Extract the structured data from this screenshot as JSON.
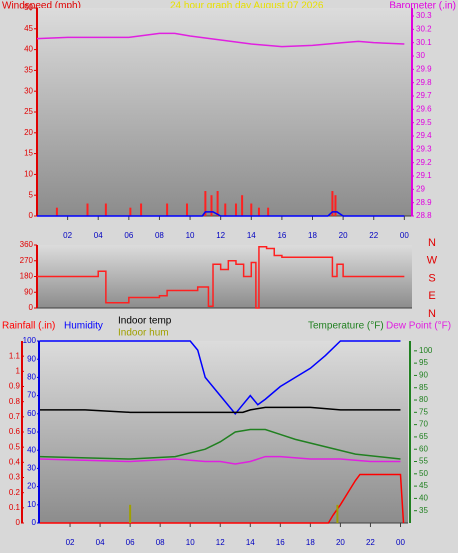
{
  "chart_data": [
    {
      "type": "line",
      "title": "24 hour graph day   August 07 2026",
      "ylabel": "Windspeed (mph)",
      "y2label": "Barometer (.in)",
      "xlim": [
        0,
        24.5
      ],
      "xticks": [
        {
          "value": 2,
          "label": "02"
        },
        {
          "value": 4,
          "label": "04"
        },
        {
          "value": 6,
          "label": "06"
        },
        {
          "value": 8,
          "label": "08"
        },
        10,
        12,
        14,
        16,
        18,
        20,
        22,
        {
          "value": 24,
          "label": "00"
        }
      ],
      "ylim": [
        0,
        50
      ],
      "yticks": [
        0,
        5,
        10,
        15,
        20,
        25,
        30,
        35,
        40,
        45,
        50
      ],
      "y2lim": [
        28.8,
        30.36
      ],
      "y2ticks": [
        28.8,
        28.9,
        29,
        29.1,
        29.2,
        29.3,
        29.4,
        29.5,
        29.6,
        29.7,
        29.8,
        29.9,
        30,
        30.1,
        30.2,
        30.3
      ],
      "series": [
        {
          "color": "#ff2020",
          "style": "spikes",
          "x": [
            1.3,
            3.3,
            4.5,
            6.1,
            6.8,
            8.5,
            9.8,
            11.0,
            11.4,
            11.8,
            12.3,
            13.0,
            13.4,
            14.0,
            14.5,
            15.1,
            19.3,
            19.5
          ],
          "values": [
            2,
            3,
            3,
            2,
            3,
            3,
            3,
            6,
            5,
            6,
            3,
            3,
            5,
            3,
            2,
            2,
            6,
            5
          ]
        },
        {
          "color": "#0000ff",
          "x": [
            0,
            10.8,
            11,
            11.5,
            12,
            19,
            19.3,
            19.6,
            20,
            24
          ],
          "values": [
            0,
            0,
            1,
            1,
            0,
            0,
            1,
            1,
            0,
            0
          ]
        },
        {
          "color": "#e020e0",
          "axis": "y2",
          "x": [
            0,
            2,
            4,
            6,
            8,
            9,
            10,
            12,
            14,
            16,
            18,
            20,
            21,
            22,
            24
          ],
          "values": [
            30.13,
            30.14,
            30.14,
            30.14,
            30.17,
            30.17,
            30.15,
            30.12,
            30.09,
            30.07,
            30.08,
            30.1,
            30.11,
            30.1,
            30.09
          ]
        }
      ]
    },
    {
      "type": "line",
      "xlim": [
        0,
        24.5
      ],
      "ylim": [
        0,
        360
      ],
      "yticks": [
        0,
        90,
        180,
        270,
        360
      ],
      "compass": [
        "N",
        "W",
        "S",
        "E",
        "N"
      ],
      "series": [
        {
          "color": "#ff2020",
          "style": "step",
          "x": [
            0,
            4,
            4.5,
            6,
            8,
            8.5,
            10.5,
            11.2,
            11.5,
            12,
            12.5,
            13,
            13.5,
            14,
            14.3,
            14.5,
            15,
            15.5,
            16,
            19,
            19.3,
            19.6,
            20,
            24
          ],
          "values": [
            180,
            210,
            30,
            60,
            70,
            100,
            120,
            10,
            250,
            220,
            270,
            250,
            180,
            260,
            0,
            350,
            340,
            300,
            290,
            290,
            180,
            250,
            180,
            180
          ]
        }
      ]
    },
    {
      "type": "line",
      "xlim": [
        0,
        24.5
      ],
      "xticks": [
        {
          "value": 2,
          "label": "02"
        },
        {
          "value": 4,
          "label": "04"
        },
        {
          "value": 6,
          "label": "06"
        },
        {
          "value": 8,
          "label": "08"
        },
        10,
        12,
        14,
        16,
        18,
        20,
        22,
        {
          "value": 24,
          "label": "00"
        }
      ],
      "ylim": [
        0,
        100
      ],
      "yticks": [
        0,
        10,
        20,
        30,
        40,
        50,
        60,
        70,
        80,
        90,
        100
      ],
      "y2lim": [
        30,
        104
      ],
      "y2ticks": [
        35,
        40,
        45,
        50,
        55,
        60,
        65,
        70,
        75,
        80,
        85,
        90,
        95,
        100
      ],
      "y3lim": [
        0,
        1.2
      ],
      "y3ticks": [
        0,
        0.1,
        0.2,
        0.3,
        0.4,
        0.5,
        0.6,
        0.7,
        0.8,
        0.9,
        1,
        1.1
      ],
      "series": [
        {
          "name": "Rainfall (.in)",
          "color": "#ff0000",
          "axis": "y3",
          "x": [
            0,
            19.2,
            19.5,
            20,
            20.5,
            21,
            21.3,
            24,
            24.2
          ],
          "values": [
            0,
            0,
            0.05,
            0.12,
            0.2,
            0.28,
            0.32,
            0.32,
            0
          ]
        },
        {
          "name": "Humidity",
          "color": "#0000ff",
          "x": [
            0,
            10,
            10.5,
            11,
            12,
            13,
            13.5,
            14,
            14.5,
            15,
            16,
            17,
            18,
            19,
            20,
            24
          ],
          "values": [
            100,
            100,
            95,
            80,
            70,
            60,
            65,
            70,
            65,
            68,
            75,
            80,
            85,
            92,
            100,
            100
          ]
        },
        {
          "name": "Indoor temp",
          "color": "#000000",
          "axis": "y2",
          "x": [
            0,
            3,
            6,
            9,
            12,
            13.5,
            14,
            15,
            16,
            18,
            20,
            22,
            24
          ],
          "values": [
            76,
            76,
            75,
            75,
            75,
            75,
            76,
            77,
            77,
            77,
            76,
            76,
            76
          ]
        },
        {
          "name": "Indoor hum",
          "color": "#a0a000",
          "style": "spikes",
          "x": [
            6,
            19.8
          ],
          "values": [
            10,
            10
          ]
        },
        {
          "name": "Temperature (°F)",
          "color": "#208020",
          "axis": "y2",
          "x": [
            0,
            6,
            9,
            11,
            12,
            13,
            14,
            15,
            16,
            17,
            19,
            21,
            24
          ],
          "values": [
            57,
            56,
            57,
            60,
            63,
            67,
            68,
            68,
            66,
            64,
            61,
            58,
            56
          ]
        },
        {
          "name": "Dew Point (°F)",
          "color": "#e020e0",
          "axis": "y2",
          "x": [
            0,
            6,
            9,
            11,
            12,
            13,
            14,
            15,
            16,
            18,
            20,
            22,
            24
          ],
          "values": [
            56,
            55,
            56,
            55,
            55,
            54,
            55,
            57,
            57,
            56,
            56,
            55,
            55
          ]
        }
      ]
    }
  ]
}
